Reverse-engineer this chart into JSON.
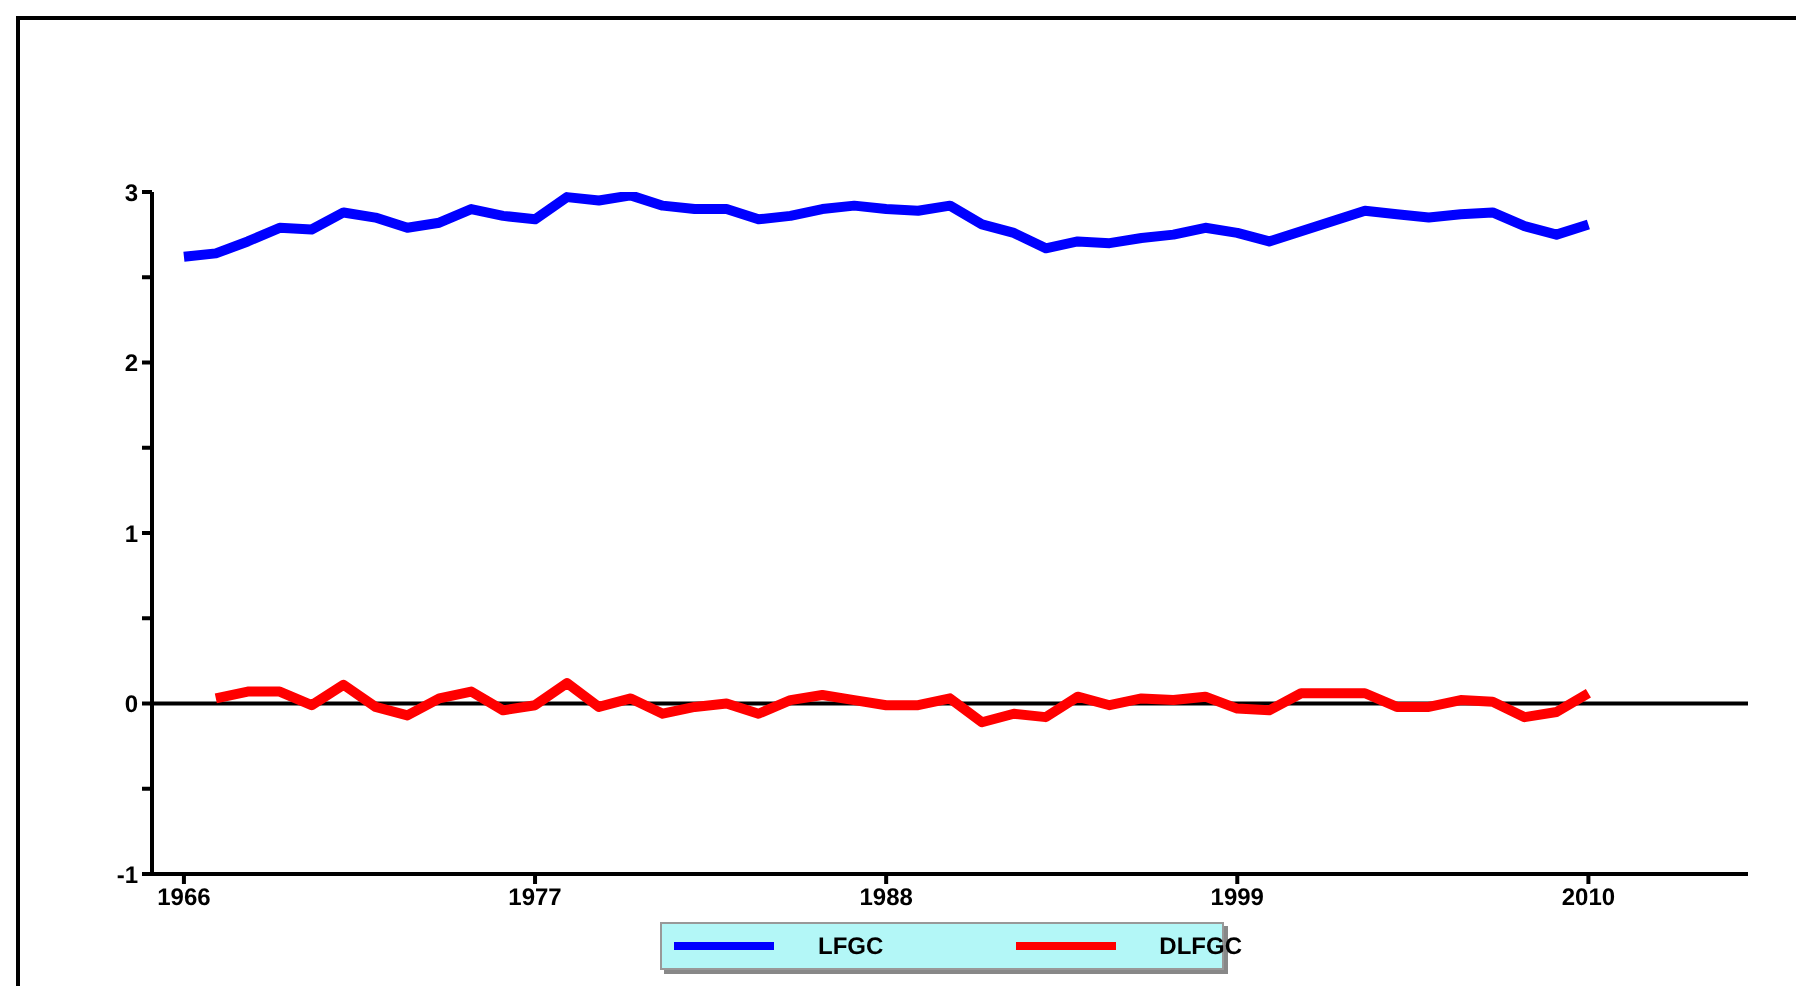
{
  "chart_data": {
    "type": "line",
    "xlim": [
      1965,
      2015
    ],
    "xticks": [
      1966,
      1977,
      1988,
      1999,
      2010
    ],
    "ylim": [
      -1,
      3
    ],
    "yticks": [
      -1,
      {
        "value": -0.5,
        "label": null
      },
      0,
      {
        "value": 0.5,
        "label": null
      },
      1,
      {
        "value": 1.5,
        "label": null
      },
      2,
      {
        "value": 2.5,
        "label": null
      },
      3
    ],
    "legend": "bottom",
    "marker": "none",
    "line_style": "solid",
    "ref_lines": [
      {
        "axis": "y",
        "value": 0,
        "color": "#000000"
      }
    ],
    "series": [
      {
        "name": "LFGC",
        "color": "#0000ff",
        "x": [
          1966,
          1967,
          1968,
          1969,
          1970,
          1971,
          1972,
          1973,
          1974,
          1975,
          1976,
          1977,
          1978,
          1979,
          1980,
          1981,
          1982,
          1983,
          1984,
          1985,
          1986,
          1987,
          1988,
          1989,
          1990,
          1991,
          1992,
          1993,
          1994,
          1995,
          1996,
          1997,
          1998,
          1999,
          2000,
          2001,
          2002,
          2003,
          2004,
          2005,
          2006,
          2007,
          2008,
          2009,
          2010
        ],
        "values": [
          2.62,
          2.64,
          2.71,
          2.79,
          2.78,
          2.88,
          2.85,
          2.79,
          2.82,
          2.9,
          2.86,
          2.84,
          2.97,
          2.95,
          2.98,
          2.92,
          2.9,
          2.9,
          2.84,
          2.86,
          2.9,
          2.92,
          2.9,
          2.89,
          2.92,
          2.81,
          2.76,
          2.67,
          2.71,
          2.7,
          2.73,
          2.75,
          2.79,
          2.76,
          2.71,
          2.77,
          2.83,
          2.89,
          2.87,
          2.85,
          2.87,
          2.88,
          2.8,
          2.75,
          2.81
        ]
      },
      {
        "name": "DLFGC",
        "color": "#ff0000",
        "x": [
          1967,
          1968,
          1969,
          1970,
          1971,
          1972,
          1973,
          1974,
          1975,
          1976,
          1977,
          1978,
          1979,
          1980,
          1981,
          1982,
          1983,
          1984,
          1985,
          1986,
          1987,
          1988,
          1989,
          1990,
          1991,
          1992,
          1993,
          1994,
          1995,
          1996,
          1997,
          1998,
          1999,
          2000,
          2001,
          2002,
          2003,
          2004,
          2005,
          2006,
          2007,
          2008,
          2009,
          2010
        ],
        "values": [
          0.03,
          0.07,
          0.07,
          -0.01,
          0.11,
          -0.02,
          -0.07,
          0.03,
          0.07,
          -0.04,
          -0.01,
          0.12,
          -0.02,
          0.03,
          -0.06,
          -0.02,
          0,
          -0.06,
          0.02,
          0.05,
          0.02,
          -0.01,
          -0.01,
          0.03,
          -0.11,
          -0.06,
          -0.08,
          0.04,
          -0.01,
          0.03,
          0.02,
          0.04,
          -0.03,
          -0.04,
          0.06,
          0.06,
          0.06,
          -0.02,
          -0.02,
          0.02,
          0.01,
          -0.08,
          -0.05,
          0.06
        ]
      }
    ]
  }
}
